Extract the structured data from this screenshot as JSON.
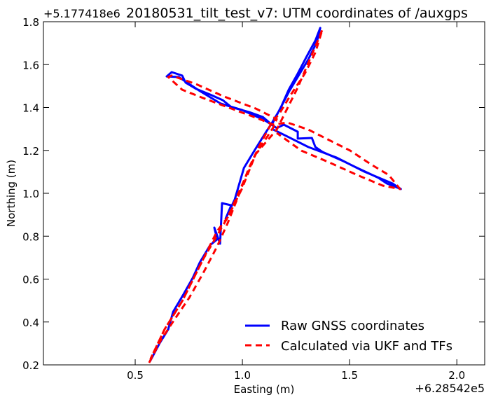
{
  "chart_data": {
    "type": "line",
    "title": "20180531_tilt_test_v7: UTM coordinates of /auxgps",
    "xlabel": "Easting (m)",
    "ylabel": "Northing (m)",
    "x_offset_label": "+6.28542e5",
    "y_offset_label": "+5.177418e6",
    "xlim": [
      0.072,
      2.13
    ],
    "ylim": [
      0.2,
      1.8
    ],
    "xticks": [
      0.5,
      1.0,
      1.5,
      2.0
    ],
    "xtick_labels": [
      "0.5",
      "1.0",
      "1.5",
      "2.0"
    ],
    "yticks": [
      0.2,
      0.4,
      0.6,
      0.8,
      1.0,
      1.2,
      1.4,
      1.6,
      1.8
    ],
    "ytick_labels": [
      "0.2",
      "0.4",
      "0.6",
      "0.8",
      "1.0",
      "1.2",
      "1.4",
      "1.6",
      "1.8"
    ],
    "grid": false,
    "legend_position": "lower-right",
    "series": [
      {
        "name": "Raw GNSS coordinates",
        "color": "#0000ff",
        "style": "solid",
        "x": [
          0.569,
          0.614,
          0.654,
          0.677,
          0.726,
          0.768,
          0.801,
          0.85,
          0.882,
          0.869,
          0.896,
          0.905,
          0.948,
          0.922,
          0.964,
          1.007,
          1.062,
          1.111,
          1.137,
          1.177,
          1.216,
          1.258,
          1.301,
          1.34,
          1.363,
          1.347,
          1.307,
          1.219,
          1.137,
          1.095,
          1.03,
          0.948,
          0.909,
          0.85,
          0.784,
          0.735,
          0.719,
          0.67,
          0.647,
          0.703,
          0.801,
          0.899,
          0.997,
          1.105,
          1.16,
          1.193,
          1.258,
          1.258,
          1.324,
          1.34,
          1.373,
          1.471,
          1.536,
          1.634,
          1.673,
          1.739,
          1.699,
          1.569,
          1.438,
          1.307,
          1.209,
          1.144
        ],
        "y": [
          0.216,
          0.301,
          0.366,
          0.448,
          0.53,
          0.605,
          0.677,
          0.759,
          0.785,
          0.84,
          0.765,
          0.954,
          0.944,
          0.882,
          0.971,
          1.118,
          1.209,
          1.287,
          1.327,
          1.395,
          1.483,
          1.558,
          1.64,
          1.712,
          1.771,
          1.705,
          1.624,
          1.477,
          1.32,
          1.356,
          1.379,
          1.402,
          1.434,
          1.46,
          1.487,
          1.516,
          1.549,
          1.565,
          1.545,
          1.542,
          1.477,
          1.418,
          1.389,
          1.34,
          1.304,
          1.32,
          1.287,
          1.255,
          1.258,
          1.216,
          1.193,
          1.15,
          1.118,
          1.072,
          1.046,
          1.02,
          1.046,
          1.101,
          1.167,
          1.216,
          1.265,
          1.297
        ]
      },
      {
        "name": "Calculated via UKF and TFs",
        "color": "#ff0000",
        "style": "dashed",
        "x": [
          0.565,
          0.621,
          0.686,
          0.752,
          0.817,
          0.882,
          0.932,
          0.981,
          1.03,
          1.085,
          1.128,
          1.177,
          1.226,
          1.291,
          1.34,
          1.373,
          1.356,
          1.258,
          1.16,
          1.062,
          0.997,
          0.932,
          0.882,
          0.817,
          0.719,
          0.637,
          0.572,
          0.637,
          0.719,
          0.817,
          0.932,
          1.062,
          1.144,
          1.16,
          1.062,
          0.915,
          0.784,
          0.67,
          0.654,
          0.719,
          0.817,
          0.948,
          1.062,
          1.144,
          1.209,
          1.307,
          1.405,
          1.503,
          1.601,
          1.683,
          1.735,
          1.654,
          1.536,
          1.405,
          1.275,
          1.16
        ],
        "y": [
          0.21,
          0.318,
          0.416,
          0.513,
          0.628,
          0.752,
          0.863,
          0.987,
          1.118,
          1.232,
          1.313,
          1.379,
          1.46,
          1.558,
          1.656,
          1.764,
          1.722,
          1.493,
          1.297,
          1.183,
          1.02,
          0.889,
          0.824,
          0.693,
          0.497,
          0.366,
          0.229,
          0.366,
          0.497,
          0.693,
          0.889,
          1.183,
          1.307,
          1.346,
          1.395,
          1.451,
          1.509,
          1.549,
          1.542,
          1.483,
          1.444,
          1.395,
          1.353,
          1.32,
          1.33,
          1.297,
          1.248,
          1.199,
          1.134,
          1.085,
          1.02,
          1.036,
          1.085,
          1.144,
          1.199,
          1.281
        ]
      }
    ]
  }
}
